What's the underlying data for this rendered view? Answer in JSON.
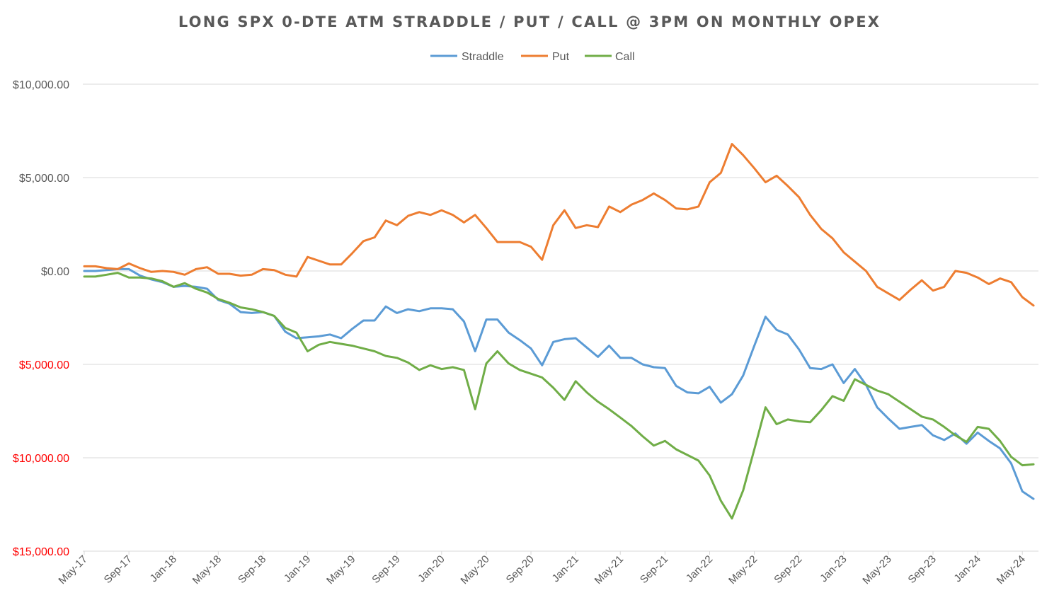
{
  "chart_data": {
    "type": "line",
    "title": "LONG SPX 0-DTE ATM STRADDLE / PUT / CALL @ 3PM ON MONTHLY OPEX",
    "xlabel": "",
    "ylabel": "",
    "ylim": [
      -15000,
      10000
    ],
    "grid": true,
    "legend_position": "top",
    "y_ticks": [
      {
        "value": 10000,
        "label": "$10,000.00",
        "color": "#595959"
      },
      {
        "value": 5000,
        "label": "$5,000.00",
        "color": "#595959"
      },
      {
        "value": 0,
        "label": "$0.00",
        "color": "#595959"
      },
      {
        "value": -5000,
        "label": "$5,000.00",
        "color": "#ff0000"
      },
      {
        "value": -10000,
        "label": "$10,000.00",
        "color": "#ff0000"
      },
      {
        "value": -15000,
        "label": "$15,000.00",
        "color": "#ff0000"
      }
    ],
    "x_tick_labels": [
      {
        "index": 0,
        "label": "May-17"
      },
      {
        "index": 4,
        "label": "Sep-17"
      },
      {
        "index": 8,
        "label": "Jan-18"
      },
      {
        "index": 12,
        "label": "May-18"
      },
      {
        "index": 16,
        "label": "Sep-18"
      },
      {
        "index": 20,
        "label": "Jan-19"
      },
      {
        "index": 24,
        "label": "May-19"
      },
      {
        "index": 28,
        "label": "Sep-19"
      },
      {
        "index": 32,
        "label": "Jan-20"
      },
      {
        "index": 36,
        "label": "May-20"
      },
      {
        "index": 40,
        "label": "Sep-20"
      },
      {
        "index": 44,
        "label": "Jan-21"
      },
      {
        "index": 48,
        "label": "May-21"
      },
      {
        "index": 52,
        "label": "Sep-21"
      },
      {
        "index": 56,
        "label": "Jan-22"
      },
      {
        "index": 60,
        "label": "May-22"
      },
      {
        "index": 64,
        "label": "Sep-22"
      },
      {
        "index": 68,
        "label": "Jan-23"
      },
      {
        "index": 72,
        "label": "May-23"
      },
      {
        "index": 76,
        "label": "Sep-23"
      },
      {
        "index": 80,
        "label": "Jan-24"
      },
      {
        "index": 84,
        "label": "May-24"
      }
    ],
    "series": [
      {
        "name": "Straddle",
        "color": "#5b9bd5",
        "values": [
          0,
          0,
          50,
          100,
          100,
          -250,
          -450,
          -600,
          -850,
          -800,
          -850,
          -950,
          -1550,
          -1750,
          -2200,
          -2250,
          -2200,
          -2400,
          -3250,
          -3600,
          -3550,
          -3500,
          -3400,
          -3600,
          -3100,
          -2650,
          -2650,
          -1900,
          -2250,
          -2050,
          -2150,
          -2000,
          -2000,
          -2050,
          -2700,
          -4300,
          -2600,
          -2600,
          -3300,
          -3700,
          -4150,
          -5050,
          -3800,
          -3650,
          -3600,
          -4100,
          -4600,
          -4000,
          -4650,
          -4650,
          -5000,
          -5150,
          -5200,
          -6150,
          -6500,
          -6550,
          -6200,
          -7050,
          -6600,
          -5600,
          -4000,
          -2450,
          -3150,
          -3400,
          -4200,
          -5200,
          -5250,
          -5000,
          -6000,
          -5250,
          -6100,
          -7300,
          -7900,
          -8450,
          -8350,
          -8250,
          -8800,
          -9050,
          -8700,
          -9250,
          -8650,
          -9100,
          -9500,
          -10300,
          -11800,
          -12200
        ]
      },
      {
        "name": "Put",
        "color": "#ed7d31",
        "values": [
          250,
          250,
          150,
          100,
          400,
          150,
          -50,
          0,
          -50,
          -200,
          100,
          200,
          -150,
          -150,
          -250,
          -200,
          100,
          50,
          -200,
          -300,
          750,
          550,
          350,
          350,
          950,
          1600,
          1800,
          2700,
          2450,
          2950,
          3150,
          3000,
          3250,
          3000,
          2600,
          3000,
          2300,
          1550,
          1550,
          1550,
          1300,
          600,
          2450,
          3250,
          2300,
          2450,
          2350,
          3450,
          3150,
          3550,
          3800,
          4150,
          3800,
          3350,
          3300,
          3450,
          4750,
          5250,
          6800,
          6200,
          5500,
          4750,
          5100,
          4550,
          3950,
          3000,
          2250,
          1750,
          1000,
          500,
          0,
          -850,
          -1200,
          -1550,
          -1000,
          -500,
          -1050,
          -850,
          0,
          -100,
          -350,
          -700,
          -400,
          -600,
          -1400,
          -1850
        ]
      },
      {
        "name": "Call",
        "color": "#70ad47",
        "values": [
          -300,
          -300,
          -200,
          -100,
          -350,
          -350,
          -400,
          -550,
          -850,
          -650,
          -950,
          -1150,
          -1500,
          -1700,
          -1950,
          -2050,
          -2200,
          -2400,
          -3050,
          -3300,
          -4300,
          -3950,
          -3800,
          -3900,
          -4000,
          -4150,
          -4300,
          -4550,
          -4650,
          -4900,
          -5300,
          -5050,
          -5250,
          -5150,
          -5300,
          -7400,
          -4950,
          -4300,
          -4950,
          -5300,
          -5500,
          -5700,
          -6250,
          -6900,
          -5900,
          -6500,
          -7000,
          -7400,
          -7850,
          -8300,
          -8850,
          -9350,
          -9100,
          -9550,
          -9850,
          -10150,
          -10950,
          -12300,
          -13250,
          -11750,
          -9550,
          -7300,
          -8200,
          -7950,
          -8050,
          -8100,
          -7450,
          -6700,
          -6950,
          -5800,
          -6100,
          -6400,
          -6600,
          -7000,
          -7400,
          -7800,
          -7950,
          -8350,
          -8800,
          -9150,
          -8350,
          -8450,
          -9100,
          -9950,
          -10400,
          -10350
        ]
      }
    ]
  }
}
